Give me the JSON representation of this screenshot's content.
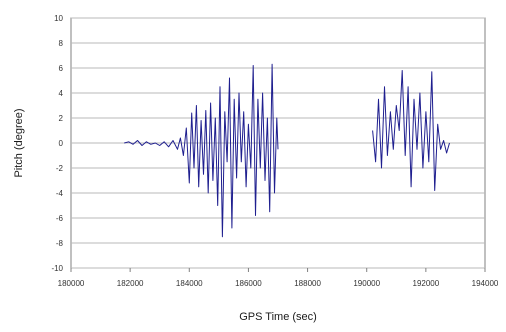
{
  "chart_data": {
    "type": "line",
    "title": "",
    "xlabel": "GPS Time (sec)",
    "ylabel": "Pitch (degree)",
    "xlim": [
      180000,
      194000
    ],
    "ylim": [
      -10,
      10
    ],
    "x_ticks": [
      180000,
      182000,
      184000,
      186000,
      188000,
      190000,
      192000,
      194000
    ],
    "y_ticks": [
      10,
      8,
      6,
      4,
      2,
      0,
      -2,
      -4,
      -6,
      -8,
      -10
    ],
    "grid": true,
    "legend": "none",
    "series": [
      {
        "color": "#1f1f8f",
        "segments": [
          {
            "x": [
              181800,
              181950,
              182100,
              182250,
              182400,
              182550,
              182700,
              182850,
              183000,
              183150,
              183300,
              183450,
              183600,
              183700,
              183800,
              183900,
              184000,
              184080,
              184160,
              184240,
              184320,
              184400,
              184480,
              184560,
              184640,
              184720,
              184800,
              184880,
              184960,
              185040,
              185120,
              185200,
              185280,
              185360,
              185440,
              185520,
              185600,
              185680,
              185760,
              185840,
              185920,
              186000,
              186080,
              186160,
              186240,
              186320,
              186400,
              186480,
              186560,
              186640,
              186720,
              186800,
              186880,
              186960,
              187000
            ],
            "y": [
              0.0,
              0.1,
              -0.1,
              0.2,
              -0.2,
              0.1,
              -0.1,
              0.0,
              -0.2,
              0.1,
              -0.3,
              0.2,
              -0.5,
              0.4,
              -1.0,
              1.2,
              -3.2,
              2.4,
              -2.0,
              3.0,
              -3.5,
              1.8,
              -2.5,
              2.6,
              -4.0,
              3.2,
              -3.0,
              2.0,
              -5.0,
              4.5,
              -7.5,
              2.5,
              -1.5,
              5.2,
              -6.8,
              3.5,
              -2.8,
              4.0,
              -1.5,
              2.5,
              -3.5,
              1.5,
              -2.0,
              6.2,
              -5.8,
              3.5,
              -2.0,
              4.0,
              -3.0,
              2.0,
              -5.5,
              6.3,
              -4.0,
              2.0,
              -0.5
            ]
          },
          {
            "x": [
              190200,
              190300,
              190400,
              190500,
              190600,
              190700,
              190800,
              190900,
              191000,
              191100,
              191200,
              191300,
              191400,
              191500,
              191600,
              191700,
              191800,
              191900,
              192000,
              192100,
              192200,
              192300,
              192400,
              192500,
              192600,
              192700,
              192800
            ],
            "y": [
              1.0,
              -1.5,
              3.5,
              -2.0,
              4.5,
              -1.0,
              2.5,
              -0.5,
              3.0,
              1.0,
              5.8,
              -1.0,
              4.5,
              -3.5,
              3.5,
              -0.5,
              4.0,
              -2.0,
              2.5,
              -1.5,
              5.7,
              -3.8,
              1.5,
              -0.5,
              0.2,
              -0.8,
              0.0
            ]
          }
        ]
      }
    ]
  }
}
